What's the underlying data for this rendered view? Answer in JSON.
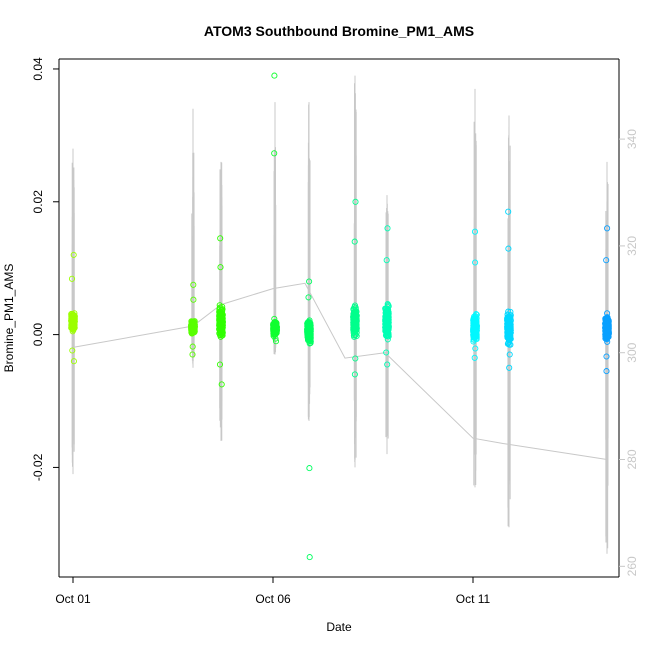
{
  "chart_data": {
    "type": "scatter",
    "title": "ATOM3 Southbound Bromine_PM1_AMS",
    "xlabel": "Date",
    "ylabel": "Bromine_PM1_AMS",
    "x_ticks": [
      {
        "day": 1,
        "label": "Oct 01"
      },
      {
        "day": 6,
        "label": "Oct 06"
      },
      {
        "day": 11,
        "label": "Oct 11"
      }
    ],
    "xlim_day": [
      0.65,
      14.65
    ],
    "ylim": [
      -0.0365,
      0.0415
    ],
    "y_ticks": [
      -0.02,
      0.0,
      0.02,
      0.04
    ],
    "y_tick_labels": [
      "-0.02",
      "0.00",
      "0.02",
      "0.04"
    ],
    "y2lim": [
      258,
      355
    ],
    "y2_ticks": [
      260,
      280,
      300,
      320,
      340
    ],
    "y2_tick_labels": [
      "260",
      "280",
      "300",
      "320",
      "340"
    ],
    "y2_series_color": "#c8c8c8",
    "grey_trace": {
      "name": "secondary-axis trace",
      "path": [
        [
          1.0,
          301
        ],
        [
          4.0,
          305
        ],
        [
          4.7,
          309
        ],
        [
          6.0,
          312
        ],
        [
          6.8,
          313
        ],
        [
          7.8,
          299
        ],
        [
          8.8,
          300
        ],
        [
          11.0,
          284
        ],
        [
          11.75,
          283
        ],
        [
          13.5,
          281
        ],
        [
          14.35,
          280
        ]
      ]
    },
    "flight_clusters": [
      {
        "day": 1.0,
        "center": 0.002,
        "spread": 0.004,
        "low": -0.004,
        "high": 0.012,
        "color": "#9cff00",
        "grey_hi": 0.028,
        "grey_lo": -0.021
      },
      {
        "day": 4.0,
        "center": 0.001,
        "spread": 0.003,
        "low": -0.003,
        "high": 0.0075,
        "color": "#58ff00",
        "grey_hi": 0.034,
        "grey_lo": -0.005
      },
      {
        "day": 4.7,
        "center": 0.002,
        "spread": 0.007,
        "low": -0.0075,
        "high": 0.0145,
        "color": "#30ff00",
        "grey_hi": 0.026,
        "grey_lo": -0.016
      },
      {
        "day": 6.05,
        "center": 0.001,
        "spread": 0.003,
        "low": -0.001,
        "high": 0.039,
        "color": "#10ff30",
        "grey_hi": 0.035,
        "grey_lo": -0.003
      },
      {
        "day": 6.9,
        "center": 0.0005,
        "spread": 0.005,
        "low": -0.0335,
        "high": 0.008,
        "color": "#00ff60",
        "grey_hi": 0.035,
        "grey_lo": -0.013
      },
      {
        "day": 8.05,
        "center": 0.002,
        "spread": 0.007,
        "low": -0.006,
        "high": 0.02,
        "color": "#00ff8c",
        "grey_hi": 0.039,
        "grey_lo": -0.02
      },
      {
        "day": 8.85,
        "center": 0.002,
        "spread": 0.008,
        "low": -0.0045,
        "high": 0.016,
        "color": "#00ffb4",
        "grey_hi": 0.021,
        "grey_lo": -0.018
      },
      {
        "day": 11.05,
        "center": 0.001,
        "spread": 0.006,
        "low": -0.0035,
        "high": 0.0155,
        "color": "#00f8ff",
        "grey_hi": 0.037,
        "grey_lo": -0.023
      },
      {
        "day": 11.9,
        "center": 0.001,
        "spread": 0.007,
        "low": -0.005,
        "high": 0.0185,
        "color": "#00d8ff",
        "grey_hi": 0.033,
        "grey_lo": -0.029
      },
      {
        "day": 14.35,
        "center": 0.001,
        "spread": 0.006,
        "low": -0.0055,
        "high": 0.016,
        "color": "#0aa0ff",
        "grey_hi": 0.026,
        "grey_lo": -0.033
      }
    ]
  }
}
